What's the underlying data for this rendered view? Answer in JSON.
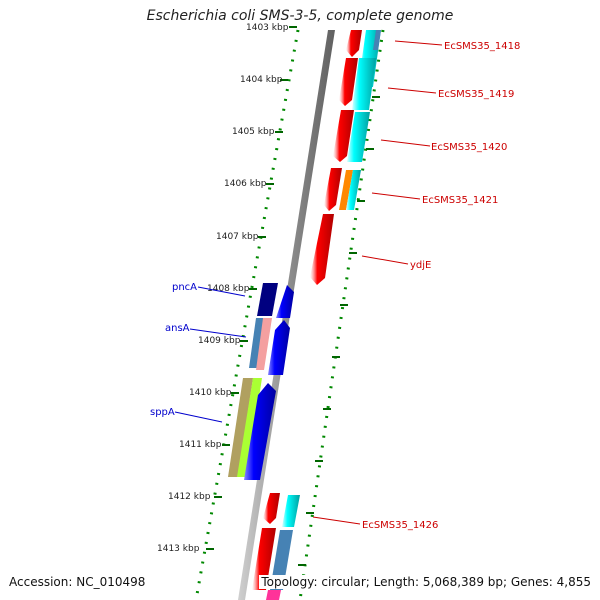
{
  "title": "Escherichia coli SMS-3-5, complete genome",
  "accession": "Accession: NC_010498",
  "topology": "Topology: circular; Length: 5,068,389 bp; Genes: 4,855",
  "ticks": [
    {
      "label": "1403 kbp"
    },
    {
      "label": "1404 kbp"
    },
    {
      "label": "1405 kbp"
    },
    {
      "label": "1406 kbp"
    },
    {
      "label": "1407 kbp"
    },
    {
      "label": "1408 kbp"
    },
    {
      "label": "1409 kbp"
    },
    {
      "label": "1410 kbp"
    },
    {
      "label": "1411 kbp"
    },
    {
      "label": "1412 kbp"
    },
    {
      "label": "1413 kbp"
    }
  ],
  "gene_labels_right": [
    {
      "label": "EcSMS35_1418"
    },
    {
      "label": "EcSMS35_1419"
    },
    {
      "label": "EcSMS35_1420"
    },
    {
      "label": "EcSMS35_1421"
    },
    {
      "label": "ydjE"
    },
    {
      "label": "EcSMS35_1426"
    }
  ],
  "gene_labels_left": [
    {
      "label": "pncA"
    },
    {
      "label": "ansA"
    },
    {
      "label": "sppA"
    }
  ],
  "colors": {
    "red": "#ff0000",
    "cyan": "#00ffff",
    "blue": "#0000ff",
    "navy": "#000080",
    "steel": "#4682b4",
    "pink": "#f4a0a0",
    "olive": "#b0a060",
    "lime": "#aaff33",
    "orange": "#ff8800",
    "backbone": "#808080",
    "tick_green": "#006600"
  }
}
